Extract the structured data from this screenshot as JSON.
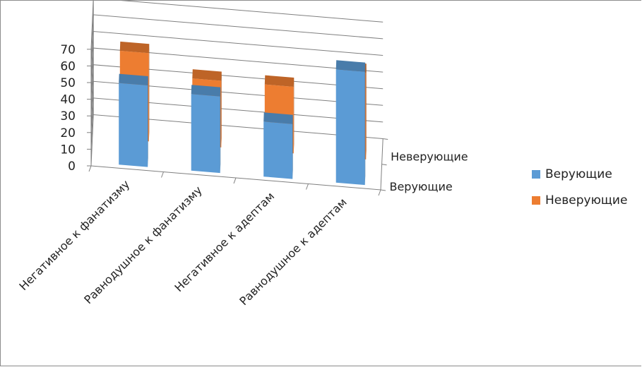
{
  "chart_data": {
    "type": "bar",
    "subtype": "3d-clustered-column",
    "title": "",
    "xlabel": "",
    "ylabel": "",
    "ylim": [
      0,
      70
    ],
    "yticks": [
      "0",
      "10",
      "20",
      "30",
      "40",
      "50",
      "60",
      "70"
    ],
    "grid": true,
    "legend_position": "right",
    "categories": [
      "Негативное к фанатизму",
      "Равнодушное к фанатизму",
      "Негативное к адептам",
      "Равнодушное к адептам"
    ],
    "depth_labels": [
      "Верующие",
      "Неверующие"
    ],
    "series": [
      {
        "name": "Верующие",
        "values": [
          49,
          46,
          33,
          68
        ],
        "color": "#5b9bd5"
      },
      {
        "name": "Неверующие",
        "values": [
          53,
          40,
          40,
          52
        ],
        "color": "#ed7d31"
      }
    ]
  }
}
